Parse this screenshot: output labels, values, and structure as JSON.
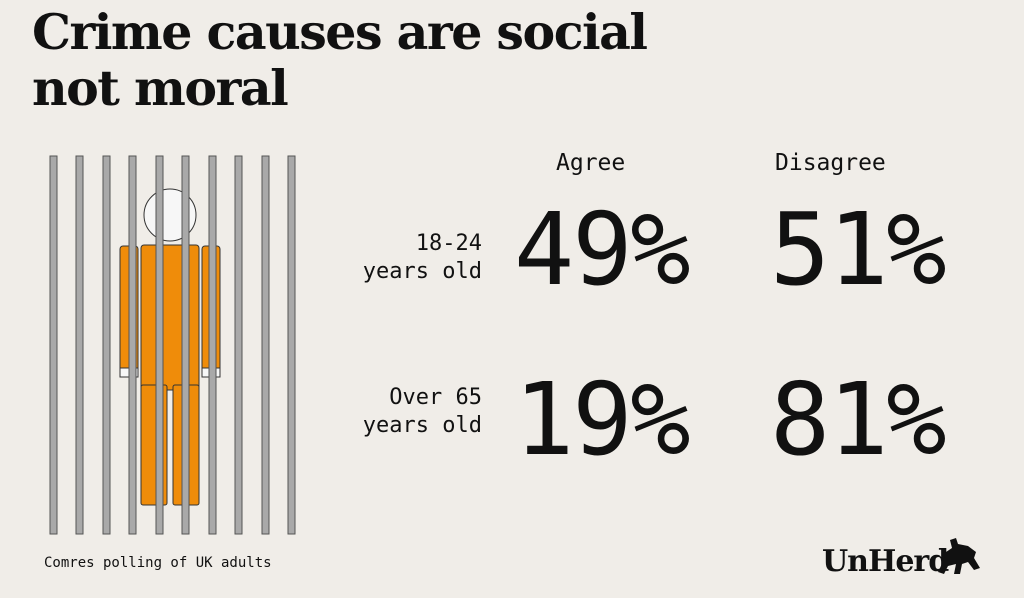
{
  "title": "Crime causes are social not moral",
  "source": "Comres polling of UK adults",
  "logo_text": "UnHerd",
  "colors": {
    "background": "#f0ede8",
    "figure": "#ef8c0a",
    "bars": "#a9a9a9",
    "text": "#111111"
  },
  "icons": {
    "illustration": "prisoner-behind-bars-icon",
    "logo_mark": "bull-icon"
  },
  "chart_data": {
    "type": "table",
    "columns": [
      "Agree",
      "Disagree"
    ],
    "rows": [
      {
        "label_line1": "18-24",
        "label_line2": "years old",
        "agree": "49%",
        "disagree": "51%"
      },
      {
        "label_line1": "Over 65",
        "label_line2": "years old",
        "agree": "19%",
        "disagree": "81%"
      }
    ]
  }
}
